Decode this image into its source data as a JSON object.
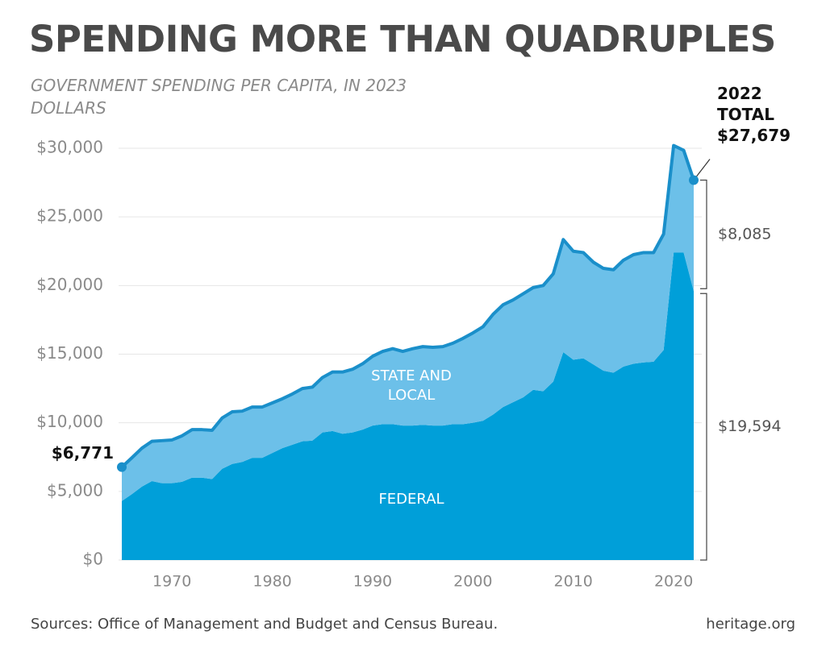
{
  "chart_data": {
    "type": "stacked-area",
    "title": "SPENDING MORE THAN QUADRUPLES",
    "subtitle": "GOVERNMENT SPENDING PER CAPITA, IN 2023 DOLLARS",
    "x": [
      1965,
      1966,
      1967,
      1968,
      1969,
      1970,
      1971,
      1972,
      1973,
      1974,
      1975,
      1976,
      1977,
      1978,
      1979,
      1980,
      1981,
      1982,
      1983,
      1984,
      1985,
      1986,
      1987,
      1988,
      1989,
      1990,
      1991,
      1992,
      1993,
      1994,
      1995,
      1996,
      1997,
      1998,
      1999,
      2000,
      2001,
      2002,
      2003,
      2004,
      2005,
      2006,
      2007,
      2008,
      2009,
      2010,
      2011,
      2012,
      2013,
      2014,
      2015,
      2016,
      2017,
      2018,
      2019,
      2020,
      2021,
      2022
    ],
    "series": [
      {
        "name": "FEDERAL",
        "color": "#009fd9",
        "values": [
          4300,
          4800,
          5350,
          5750,
          5600,
          5600,
          5700,
          6000,
          6000,
          5900,
          6650,
          7000,
          7150,
          7450,
          7450,
          7800,
          8150,
          8400,
          8650,
          8700,
          9300,
          9400,
          9200,
          9300,
          9500,
          9800,
          9900,
          9900,
          9800,
          9800,
          9850,
          9800,
          9800,
          9900,
          9900,
          10000,
          10150,
          10600,
          11150,
          11500,
          11850,
          12400,
          12300,
          13000,
          15150,
          14600,
          14700,
          14250,
          13800,
          13650,
          14100,
          14300,
          14400,
          14450,
          15300,
          22400,
          22400,
          19594
        ]
      },
      {
        "name": "STATE AND LOCAL",
        "color": "#6cc0e9",
        "values": [
          2471,
          2650,
          2800,
          2900,
          3100,
          3150,
          3350,
          3500,
          3500,
          3550,
          3700,
          3800,
          3700,
          3700,
          3700,
          3650,
          3600,
          3700,
          3850,
          3900,
          4000,
          4300,
          4500,
          4600,
          4800,
          5050,
          5300,
          5500,
          5400,
          5600,
          5700,
          5700,
          5750,
          5900,
          6250,
          6550,
          6850,
          7300,
          7450,
          7450,
          7550,
          7450,
          7700,
          7850,
          8200,
          7900,
          7700,
          7450,
          7450,
          7500,
          7750,
          7950,
          8000,
          7950,
          8450,
          7800,
          7450,
          8085
        ]
      }
    ],
    "outline_color": "#1a8fca",
    "xlim": [
      1965,
      2022
    ],
    "xticks": [
      1970,
      1980,
      1990,
      2000,
      2010,
      2020
    ],
    "ylim": [
      0,
      30000
    ],
    "yticks": [
      {
        "value": 0,
        "label": "$0"
      },
      {
        "value": 5000,
        "label": "$5,000"
      },
      {
        "value": 10000,
        "label": "$10,000"
      },
      {
        "value": 15000,
        "label": "$15,000"
      },
      {
        "value": 20000,
        "label": "$20,000"
      },
      {
        "value": 25000,
        "label": "$25,000"
      },
      {
        "value": 30000,
        "label": "$30,000"
      }
    ],
    "grid": true,
    "start_total": {
      "value": 6771,
      "label": "$6,771"
    },
    "end_total": {
      "value": 27679,
      "label": "2022 TOTAL $27,679"
    },
    "brackets": [
      {
        "value": 8085,
        "label": "$8,085"
      },
      {
        "value": 19594,
        "label": "$19,594"
      }
    ],
    "source": "Sources: Office of Management and Budget and Census Bureau.",
    "brand": "heritage.org"
  }
}
